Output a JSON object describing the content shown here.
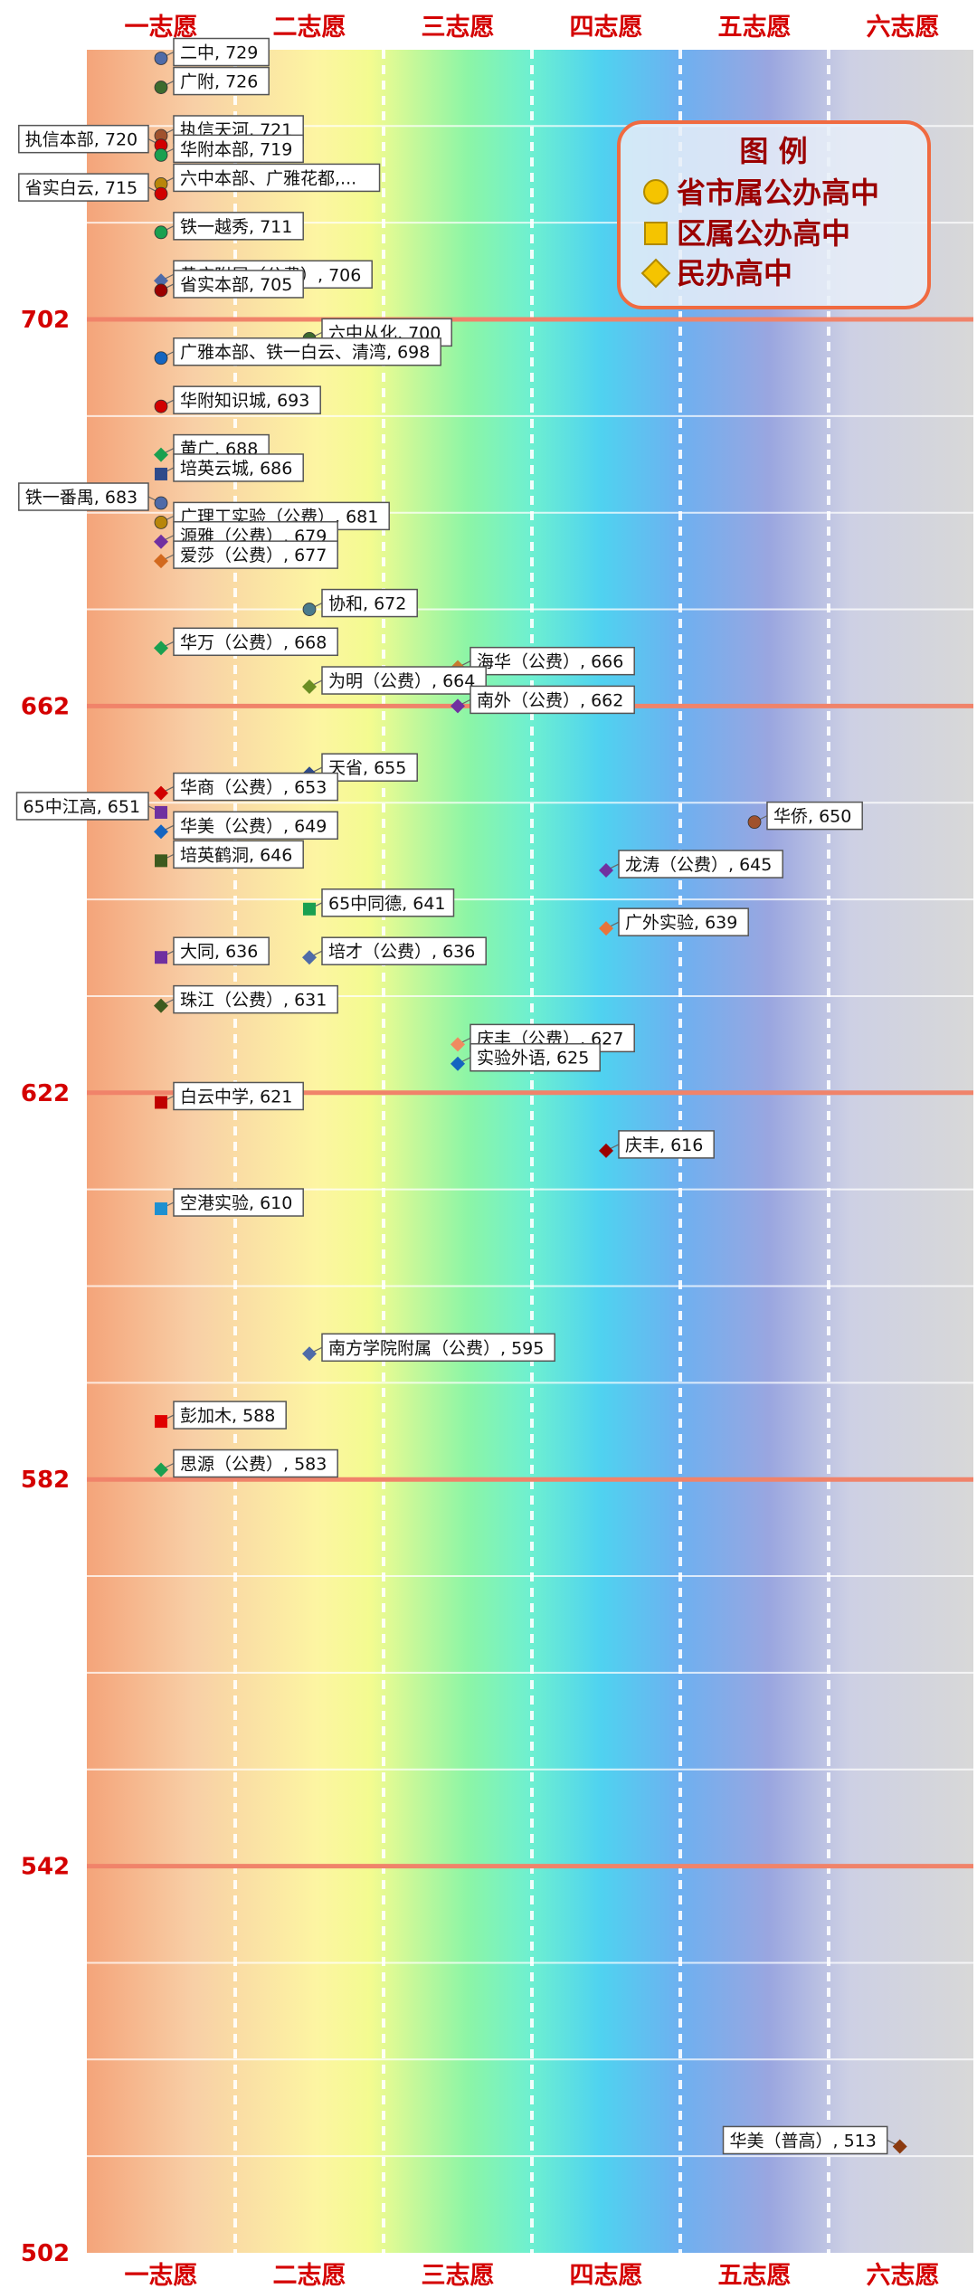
{
  "chart_data": {
    "type": "scatter",
    "columns": [
      "一志愿",
      "二志愿",
      "三志愿",
      "四志愿",
      "五志愿",
      "六志愿"
    ],
    "ylim": [
      502,
      740
    ],
    "y_ticks": [
      702,
      662,
      622,
      582,
      542,
      502
    ],
    "legend": {
      "title": "图 例",
      "placement": "top-right",
      "items": [
        {
          "marker": "circle",
          "label": "省市属公办高中",
          "color": "#f5c400"
        },
        {
          "marker": "square",
          "label": "区属公办高中",
          "color": "#f5c400"
        },
        {
          "marker": "diamond",
          "label": "民办高中",
          "color": "#f5c400"
        }
      ]
    },
    "points": [
      {
        "label": "二中, 729",
        "col": 1,
        "score": 729,
        "marker": "circle",
        "color": "#4f6ba8",
        "side": "right"
      },
      {
        "label": "广附, 726",
        "col": 1,
        "score": 726,
        "marker": "circle",
        "color": "#3d6b2e",
        "side": "right"
      },
      {
        "label": "执信天河, 721",
        "col": 1,
        "score": 721,
        "marker": "circle",
        "color": "#a0522d",
        "side": "right"
      },
      {
        "label": "执信本部, 720",
        "col": 1,
        "score": 720,
        "marker": "circle",
        "color": "#d10000",
        "side": "left"
      },
      {
        "label": "华附本部, 719",
        "col": 1,
        "score": 719,
        "marker": "circle",
        "color": "#1aa050",
        "side": "right"
      },
      {
        "label": "六中本部、广雅花都,...",
        "col": 1,
        "score": 716,
        "marker": "circle",
        "color": "#b8860b",
        "side": "right"
      },
      {
        "label": "省实白云, 715",
        "col": 1,
        "score": 715,
        "marker": "circle",
        "color": "#d10000",
        "side": "left"
      },
      {
        "label": "铁一越秀, 711",
        "col": 1,
        "score": 711,
        "marker": "circle",
        "color": "#1aa050",
        "side": "right"
      },
      {
        "label": "黄广附属（公费）, 706",
        "col": 1,
        "score": 706,
        "marker": "diamond",
        "color": "#4f6ba8",
        "side": "right"
      },
      {
        "label": "省实本部, 705",
        "col": 1,
        "score": 705,
        "marker": "circle",
        "color": "#9b0000",
        "side": "right"
      },
      {
        "label": "六中从化, 700",
        "col": 2,
        "score": 700,
        "marker": "circle",
        "color": "#3d6b2e",
        "side": "right"
      },
      {
        "label": "广雅本部、铁一白云、清湾, 698",
        "col": 1,
        "score": 698,
        "marker": "circle",
        "color": "#1565c0",
        "side": "right"
      },
      {
        "label": "华附知识城, 693",
        "col": 1,
        "score": 693,
        "marker": "circle",
        "color": "#d10000",
        "side": "right"
      },
      {
        "label": "黄广, 688",
        "col": 1,
        "score": 688,
        "marker": "diamond",
        "color": "#1aa050",
        "side": "right"
      },
      {
        "label": "培英云城, 686",
        "col": 1,
        "score": 686,
        "marker": "square",
        "color": "#2e4a8a",
        "side": "right"
      },
      {
        "label": "铁一番禺, 683",
        "col": 1,
        "score": 683,
        "marker": "circle",
        "color": "#4f6ba8",
        "side": "left"
      },
      {
        "label": "广理工实验（公费）, 681",
        "col": 1,
        "score": 681,
        "marker": "circle",
        "color": "#b8860b",
        "side": "right"
      },
      {
        "label": "源雅（公费）, 679",
        "col": 1,
        "score": 679,
        "marker": "diamond",
        "color": "#7030a0",
        "side": "right"
      },
      {
        "label": "爱莎（公费）, 677",
        "col": 1,
        "score": 677,
        "marker": "diamond",
        "color": "#d2691e",
        "side": "right"
      },
      {
        "label": "协和, 672",
        "col": 2,
        "score": 672,
        "marker": "circle",
        "color": "#4a7a8c",
        "side": "right"
      },
      {
        "label": "华万（公费）, 668",
        "col": 1,
        "score": 668,
        "marker": "diamond",
        "color": "#1aa050",
        "side": "right"
      },
      {
        "label": "海华（公费）, 666",
        "col": 3,
        "score": 666,
        "marker": "diamond",
        "color": "#c77b30",
        "side": "right"
      },
      {
        "label": "为明（公费）, 664",
        "col": 2,
        "score": 664,
        "marker": "diamond",
        "color": "#6b8e23",
        "side": "right"
      },
      {
        "label": "南外（公费）, 662",
        "col": 3,
        "score": 662,
        "marker": "diamond",
        "color": "#7030a0",
        "side": "right"
      },
      {
        "label": "天省, 655",
        "col": 2,
        "score": 655,
        "marker": "diamond",
        "color": "#2e4a8a",
        "side": "right"
      },
      {
        "label": "华商（公费）, 653",
        "col": 1,
        "score": 653,
        "marker": "diamond",
        "color": "#d10000",
        "side": "right"
      },
      {
        "label": "65中江高, 651",
        "col": 1,
        "score": 651,
        "marker": "square",
        "color": "#7030a0",
        "side": "left"
      },
      {
        "label": "华侨, 650",
        "col": 5,
        "score": 650,
        "marker": "circle",
        "color": "#a0522d",
        "side": "right"
      },
      {
        "label": "华美（公费）, 649",
        "col": 1,
        "score": 649,
        "marker": "diamond",
        "color": "#1565c0",
        "side": "right"
      },
      {
        "label": "培英鹤洞, 646",
        "col": 1,
        "score": 646,
        "marker": "square",
        "color": "#3d5a1e",
        "side": "right"
      },
      {
        "label": "龙涛（公费）, 645",
        "col": 4,
        "score": 645,
        "marker": "diamond",
        "color": "#7030a0",
        "side": "right"
      },
      {
        "label": "65中同德, 641",
        "col": 2,
        "score": 641,
        "marker": "square",
        "color": "#1aa050",
        "side": "right"
      },
      {
        "label": "广外实验, 639",
        "col": 4,
        "score": 639,
        "marker": "diamond",
        "color": "#e8743b",
        "side": "right"
      },
      {
        "label": "大同, 636",
        "col": 1,
        "score": 636,
        "marker": "square",
        "color": "#7030a0",
        "side": "right"
      },
      {
        "label": "培才（公费）, 636",
        "col": 2,
        "score": 636,
        "marker": "diamond",
        "color": "#4f6ba8",
        "side": "right"
      },
      {
        "label": "珠江（公费）, 631",
        "col": 1,
        "score": 631,
        "marker": "diamond",
        "color": "#3d5a1e",
        "side": "right"
      },
      {
        "label": "庆丰（公费）, 627",
        "col": 3,
        "score": 627,
        "marker": "diamond",
        "color": "#f08a60",
        "side": "right"
      },
      {
        "label": "实验外语, 625",
        "col": 3,
        "score": 625,
        "marker": "diamond",
        "color": "#1565c0",
        "side": "right"
      },
      {
        "label": "白云中学, 621",
        "col": 1,
        "score": 621,
        "marker": "square",
        "color": "#c00000",
        "side": "right"
      },
      {
        "label": "庆丰, 616",
        "col": 4,
        "score": 616,
        "marker": "diamond",
        "color": "#9b0000",
        "side": "right"
      },
      {
        "label": "空港实验, 610",
        "col": 1,
        "score": 610,
        "marker": "square",
        "color": "#1e90d0",
        "side": "right"
      },
      {
        "label": "南方学院附属（公费）, 595",
        "col": 2,
        "score": 595,
        "marker": "diamond",
        "color": "#4f6ba8",
        "side": "right"
      },
      {
        "label": "彭加木, 588",
        "col": 1,
        "score": 588,
        "marker": "square",
        "color": "#e00000",
        "side": "right"
      },
      {
        "label": "思源（公费）, 583",
        "col": 1,
        "score": 583,
        "marker": "diamond",
        "color": "#1aa050",
        "side": "right"
      },
      {
        "label": "华美（普高）, 513",
        "col": 5.98,
        "score": 513,
        "marker": "diamond",
        "color": "#8b3a0f",
        "side": "left"
      }
    ]
  }
}
